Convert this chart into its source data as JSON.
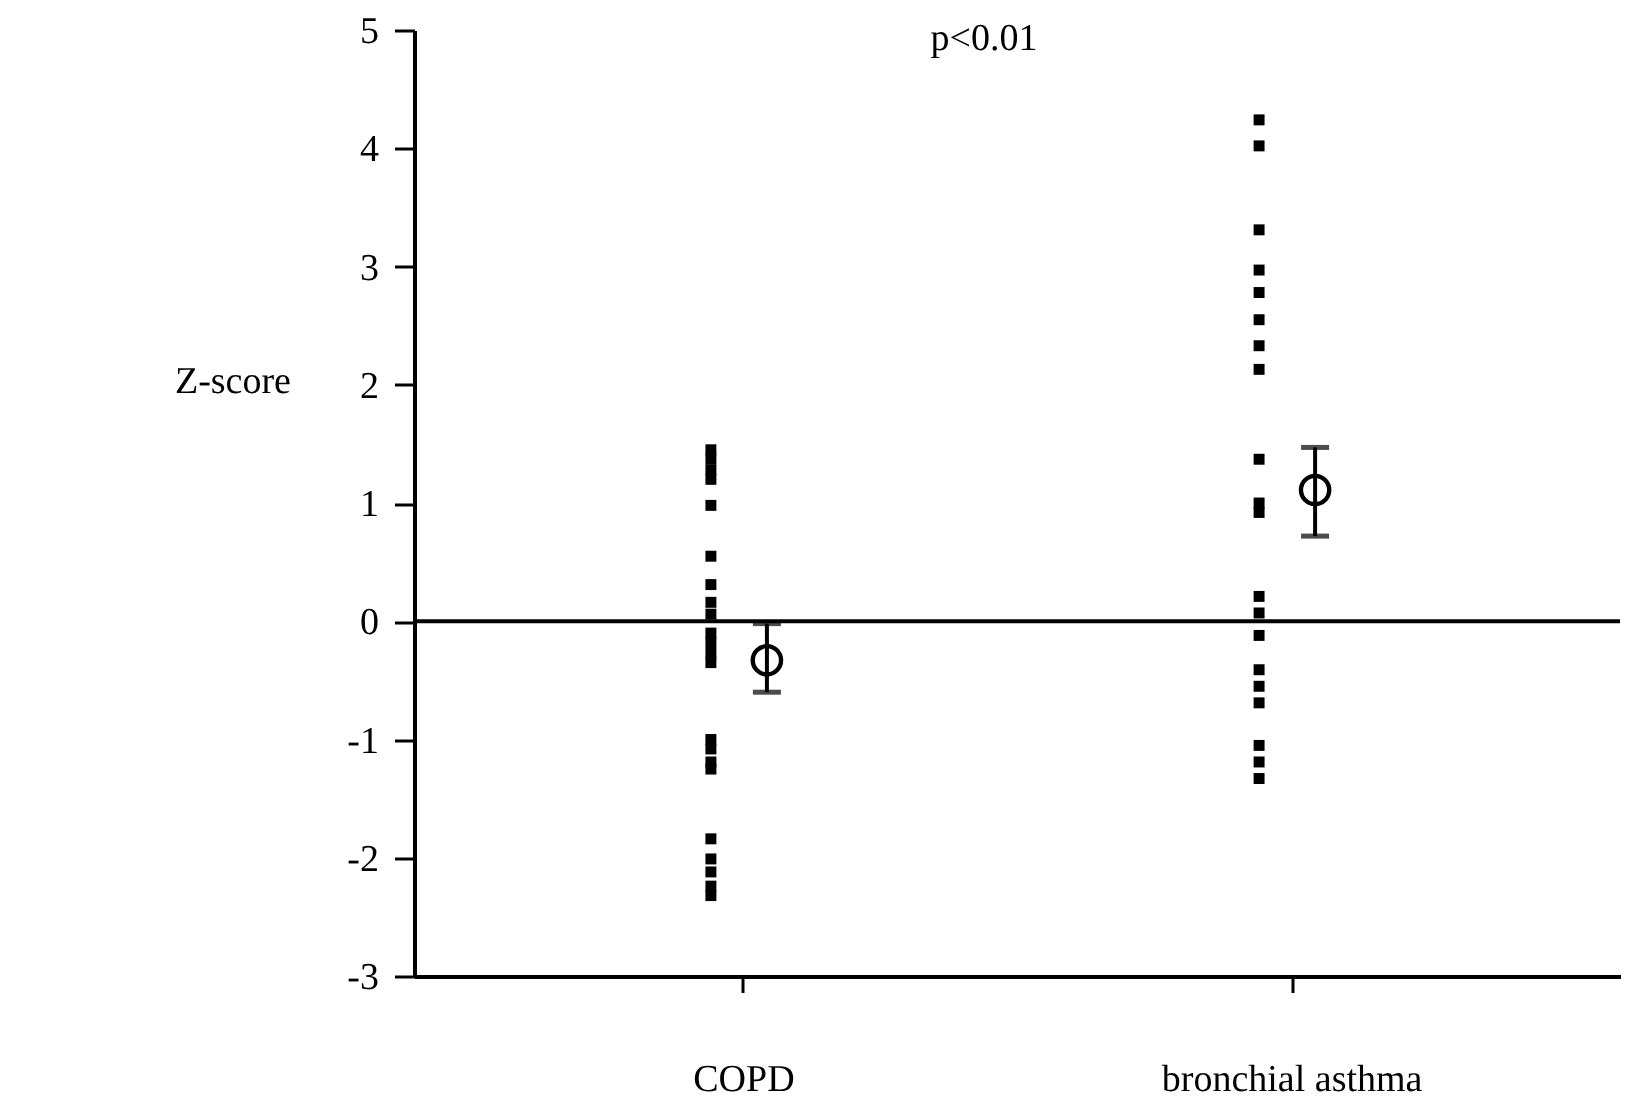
{
  "chart_data": {
    "type": "scatter",
    "categories": [
      "COPD",
      "bronchial asthma"
    ],
    "ylabel": "Z-score",
    "annotations": [
      "p<0.01"
    ],
    "ylim": [
      -3,
      5
    ],
    "yticks": [
      -3,
      -2,
      -1,
      0,
      1,
      2,
      3,
      4,
      5
    ],
    "grid": false,
    "ref_lines": [
      {
        "axis": "y",
        "value": 0
      }
    ],
    "series": [
      {
        "marker": "square",
        "color": "#000000",
        "x": [
          "COPD",
          "COPD",
          "COPD",
          "COPD",
          "COPD",
          "COPD",
          "COPD",
          "COPD",
          "COPD",
          "COPD",
          "COPD",
          "COPD",
          "COPD",
          "COPD",
          "COPD",
          "COPD",
          "COPD",
          "COPD",
          "COPD",
          "COPD",
          "COPD",
          "COPD",
          "bronchial asthma",
          "bronchial asthma",
          "bronchial asthma",
          "bronchial asthma",
          "bronchial asthma",
          "bronchial asthma",
          "bronchial asthma",
          "bronchial asthma",
          "bronchial asthma",
          "bronchial asthma",
          "bronchial asthma",
          "bronchial asthma",
          "bronchial asthma",
          "bronchial asthma",
          "bronchial asthma",
          "bronchial asthma",
          "bronchial asthma",
          "bronchial asthma",
          "bronchial asthma",
          "bronchial asthma"
        ],
        "values": [
          1.45,
          1.37,
          1.28,
          1.2,
          0.98,
          0.55,
          0.31,
          0.16,
          0.06,
          -0.1,
          -0.18,
          -0.27,
          -0.35,
          -1.0,
          -1.08,
          -1.19,
          -1.25,
          -1.84,
          -2.01,
          -2.12,
          -2.24,
          -2.32,
          4.24,
          4.02,
          3.31,
          2.97,
          2.78,
          2.55,
          2.33,
          2.13,
          1.37,
          1.0,
          0.92,
          0.21,
          0.07,
          -0.12,
          -0.41,
          -0.55,
          -0.69,
          -1.05,
          -1.19,
          -1.33
        ]
      },
      {
        "marker": "circle",
        "color": "#000000",
        "x": [
          "COPD",
          "bronchial asthma"
        ],
        "values": [
          -0.33,
          1.11
        ],
        "errors": [
          [
            -0.6,
            -0.02
          ],
          [
            0.72,
            1.47
          ]
        ]
      }
    ]
  }
}
